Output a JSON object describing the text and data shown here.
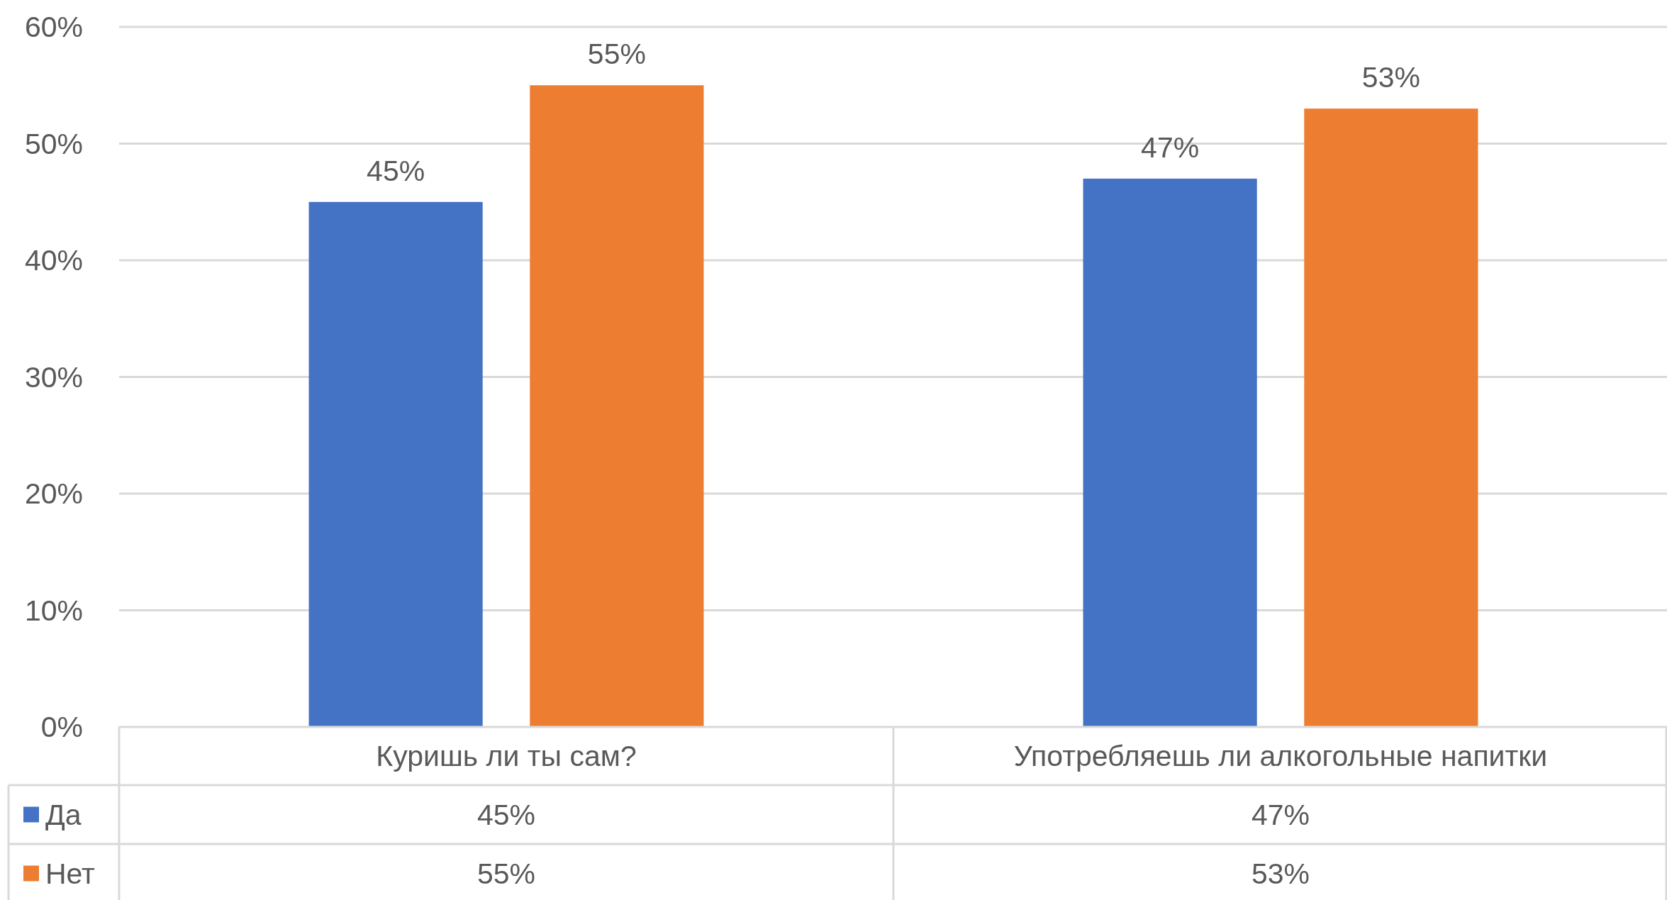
{
  "chart_data": {
    "type": "bar",
    "categories": [
      "Куришь ли ты сам?",
      "Употребляешь ли алкогольные напитки"
    ],
    "series": [
      {
        "name": "Да",
        "color": "#4472c4",
        "values": [
          45,
          47
        ],
        "value_labels": [
          "45%",
          "47%"
        ]
      },
      {
        "name": "Нет",
        "color": "#ed7d31",
        "values": [
          55,
          53
        ],
        "value_labels": [
          "55%",
          "53%"
        ]
      }
    ],
    "ylim": [
      0,
      60
    ],
    "yticks": [
      {
        "value": 0,
        "label": "0%"
      },
      {
        "value": 10,
        "label": "10%"
      },
      {
        "value": 20,
        "label": "20%"
      },
      {
        "value": 30,
        "label": "30%"
      },
      {
        "value": 40,
        "label": "40%"
      },
      {
        "value": 50,
        "label": "50%"
      },
      {
        "value": 60,
        "label": "60%"
      }
    ],
    "grid": "y",
    "legend": "bottom left"
  }
}
